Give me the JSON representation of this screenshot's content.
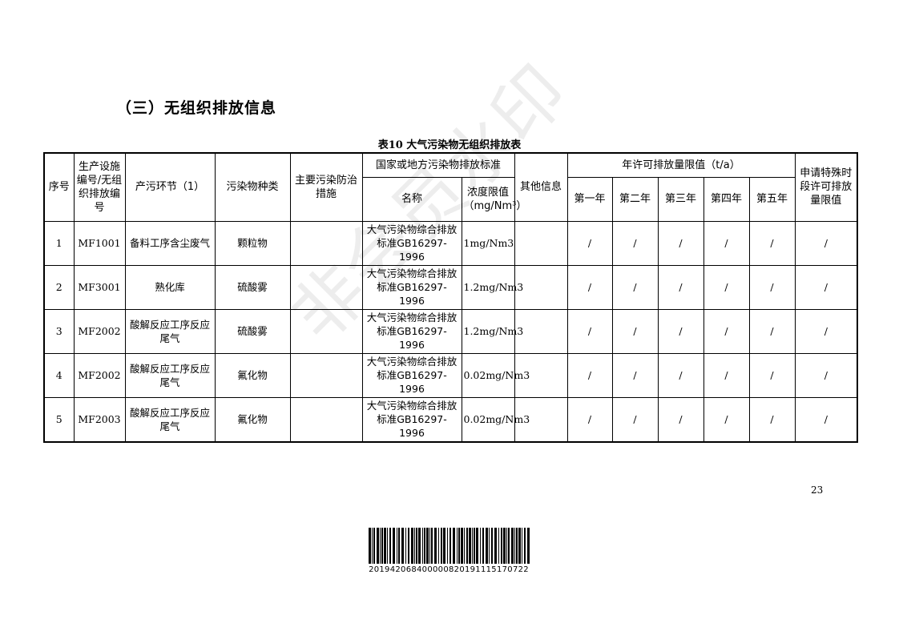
{
  "section_title": "（三）无组织排放信息",
  "table_caption": "表10 大气污染物无组织排放表",
  "headers": {
    "seq": "序号",
    "facility": "生产设施编号/无组织排放编号",
    "stage": "产污环节（1）",
    "pollutant": "污染物种类",
    "measures": "主要污染防治措施",
    "standard_group": "国家或地方污染物排放标准",
    "standard_name": "名称",
    "limit": "浓度限值（mg/Nm³）",
    "other": "其他信息",
    "annual_group": "年许可排放量限值（t/a）",
    "y1": "第一年",
    "y2": "第二年",
    "y3": "第三年",
    "y4": "第四年",
    "y5": "第五年",
    "special": "申请特殊时段许可排放量限值"
  },
  "rows": [
    {
      "seq": "1",
      "facility": "MF1001",
      "stage": "备料工序含尘废气",
      "pollutant": "颗粒物",
      "measures": "",
      "standard": "大气污染物综合排放标准GB16297-1996",
      "limit": "1mg/Nm3",
      "other": "",
      "y1": "/",
      "y2": "/",
      "y3": "/",
      "y4": "/",
      "y5": "/",
      "special": "/"
    },
    {
      "seq": "2",
      "facility": "MF3001",
      "stage": "熟化库",
      "pollutant": "硫酸雾",
      "measures": "",
      "standard": "大气污染物综合排放标准GB16297-1996",
      "limit": "1.2mg/Nm3",
      "other": "",
      "y1": "/",
      "y2": "/",
      "y3": "/",
      "y4": "/",
      "y5": "/",
      "special": "/"
    },
    {
      "seq": "3",
      "facility": "MF2002",
      "stage": "酸解反应工序反应尾气",
      "pollutant": "硫酸雾",
      "measures": "",
      "standard": "大气污染物综合排放标准GB16297-1996",
      "limit": "1.2mg/Nm3",
      "other": "",
      "y1": "/",
      "y2": "/",
      "y3": "/",
      "y4": "/",
      "y5": "/",
      "special": "/"
    },
    {
      "seq": "4",
      "facility": "MF2002",
      "stage": "酸解反应工序反应尾气",
      "pollutant": "氟化物",
      "measures": "",
      "standard": "大气污染物综合排放标准GB16297-1996",
      "limit": "0.02mg/Nm3",
      "other": "",
      "y1": "/",
      "y2": "/",
      "y3": "/",
      "y4": "/",
      "y5": "/",
      "special": "/"
    },
    {
      "seq": "5",
      "facility": "MF2003",
      "stage": "酸解反应工序反应尾气",
      "pollutant": "氟化物",
      "measures": "",
      "standard": "大气污染物综合排放标准GB16297-1996",
      "limit": "0.02mg/Nm3",
      "other": "",
      "y1": "/",
      "y2": "/",
      "y3": "/",
      "y4": "/",
      "y5": "/",
      "special": "/"
    }
  ],
  "watermark": "非会员水印",
  "page_number": "23",
  "barcode_number": "201942068400000820191115170722"
}
